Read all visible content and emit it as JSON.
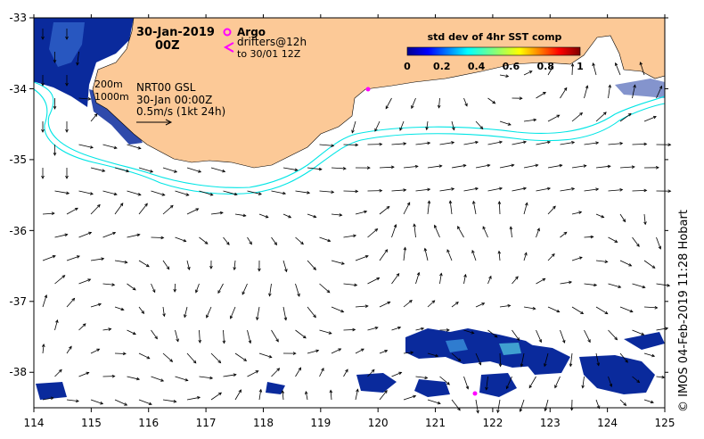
{
  "map": {
    "title": {
      "date": "30-Jan-2019",
      "time": "00Z"
    },
    "legend": {
      "argo_label": "Argo",
      "drifters_label": "drifters@12h",
      "drifters_sub": "to 30/01 12Z",
      "argo_color": "#ff00ff"
    },
    "contours": {
      "label_200": "200m",
      "label_1000": "1000m",
      "color": "#00e5e5"
    },
    "current_info": {
      "line1": "NRT00 GSL",
      "line2": "30-Jan 00:00Z",
      "line3": "0.5m/s (1kt 24h)"
    },
    "colorbar": {
      "title": "std dev of 4hr SST comp",
      "ticks": [
        "0",
        "0.2",
        "0.4",
        "0.6",
        "0.8",
        "1"
      ],
      "range": [
        0,
        1
      ]
    },
    "axes": {
      "x_ticks": [
        "114",
        "115",
        "116",
        "117",
        "118",
        "119",
        "120",
        "121",
        "122",
        "123",
        "124",
        "125"
      ],
      "y_ticks": [
        "-33",
        "-34",
        "-35",
        "-36",
        "-37",
        "-38"
      ],
      "lon_range": [
        114,
        125
      ],
      "lat_range": [
        -38.5,
        -33
      ]
    },
    "credit": "©  IMOS 04-Feb-2019 11:28 Hobart",
    "colors": {
      "land": "#fcc997",
      "data_high": "#00008b",
      "data_low": "#1e6ec8"
    }
  }
}
